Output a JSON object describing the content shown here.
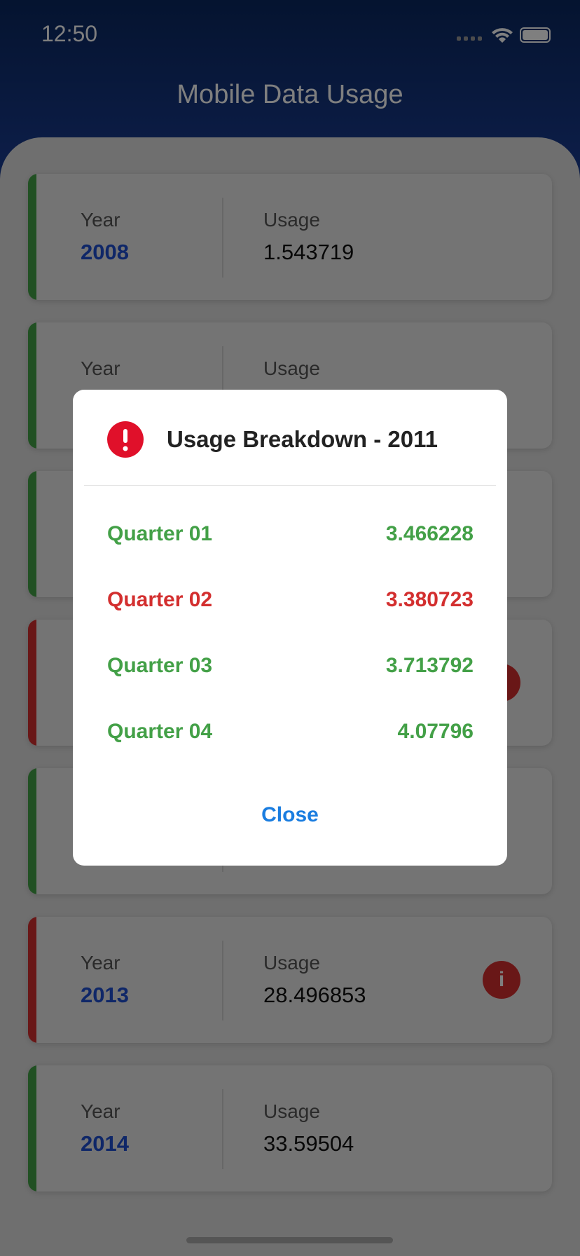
{
  "status_bar": {
    "time": "12:50"
  },
  "header": {
    "title": "Mobile Data Usage"
  },
  "cards": [
    {
      "status": "ok",
      "year_label": "Year",
      "year": "2008",
      "usage_label": "Usage",
      "usage": "1.543719"
    },
    {
      "status": "ok",
      "year_label": "Year",
      "usage_label": "Usage"
    },
    {
      "status": "ok"
    },
    {
      "status": "drop",
      "info_icon": true
    },
    {
      "status": "ok"
    },
    {
      "status": "drop",
      "info_icon": true,
      "year_label": "Year",
      "year": "2013",
      "usage_label": "Usage",
      "usage": "28.496853"
    },
    {
      "status": "ok",
      "year_label": "Year",
      "year": "2014",
      "usage_label": "Usage",
      "usage": "33.59504"
    }
  ],
  "dialog": {
    "title": "Usage Breakdown - 2011",
    "rows": [
      {
        "label": "Quarter 01",
        "value": "3.466228",
        "status": "ok"
      },
      {
        "label": "Quarter 02",
        "value": "3.380723",
        "status": "drop"
      },
      {
        "label": "Quarter 03",
        "value": "3.713792",
        "status": "ok"
      },
      {
        "label": "Quarter 04",
        "value": "4.07796",
        "status": "ok"
      }
    ],
    "close": "Close"
  },
  "status_colors": {
    "ok": "#43a047",
    "drop": "#d32f2f"
  }
}
